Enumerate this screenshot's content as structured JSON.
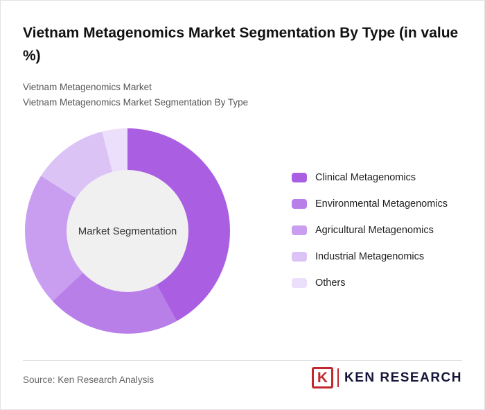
{
  "header": {
    "title": "Vietnam Metagenomics Market Segmentation By Type (in value %)",
    "subtitle_line1": "Vietnam Metagenomics Market",
    "subtitle_line2": "Vietnam Metagenomics Market Segmentation By Type"
  },
  "chart_data": {
    "type": "pie",
    "variant": "donut",
    "title": "Vietnam Metagenomics Market Segmentation By Type (in value %)",
    "center_label": "Market Segmentation",
    "legend_position": "right",
    "start_angle_deg": 0,
    "direction": "clockwise",
    "data_labels_shown": false,
    "segments": [
      {
        "label": "Clinical Metagenomics",
        "value": 42,
        "color": "#AA5FE3"
      },
      {
        "label": "Environmental Metagenomics",
        "value": 21,
        "color": "#B97FE9"
      },
      {
        "label": "Agricultural Metagenomics",
        "value": 21,
        "color": "#C99EF0"
      },
      {
        "label": "Industrial Metagenomics",
        "value": 12,
        "color": "#DCC3F6"
      },
      {
        "label": "Others",
        "value": 4,
        "color": "#ECDFFB"
      }
    ]
  },
  "footer": {
    "source": "Source: Ken Research Analysis",
    "logo": {
      "monogram": "K",
      "text": "KEN RESEARCH",
      "accent_color": "#C1272D"
    }
  }
}
